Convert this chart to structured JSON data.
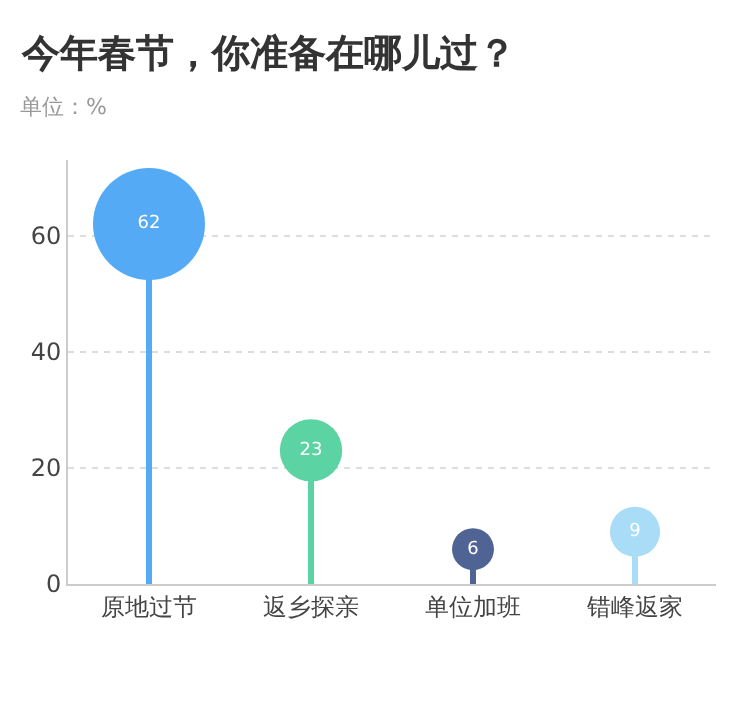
{
  "chart_data": {
    "type": "lollipop",
    "title": "今年春节，你准备在哪儿过？",
    "subtitle": "单位：%",
    "categories": [
      "原地过节",
      "返乡探亲",
      "单位加班",
      "错峰返家"
    ],
    "values": [
      62,
      23,
      6,
      9
    ],
    "colors": [
      "#55aaf5",
      "#5cd3a2",
      "#4f6494",
      "#a9dcf7"
    ],
    "sizes": [
      1,
      0.31,
      0.14,
      0.2
    ],
    "data_labels": true,
    "ylim": [
      0,
      73
    ],
    "yticks": [
      0,
      20,
      40,
      60
    ],
    "grid": "y",
    "marker": "circle",
    "legend": false
  }
}
